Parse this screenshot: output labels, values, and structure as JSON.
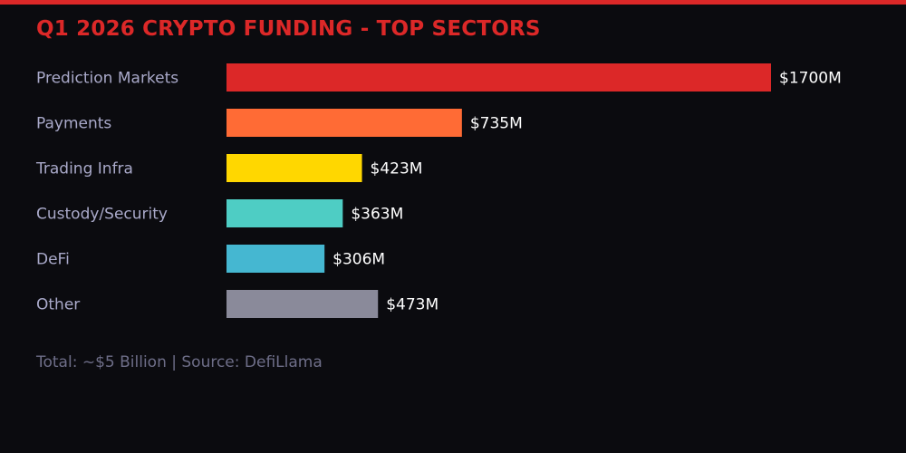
{
  "colors": {
    "accent": "#dc2828",
    "background": "#0b0b0f",
    "label": "#a9a9c9",
    "value_label": "#ffffff",
    "footer": "#6e6e88"
  },
  "chart_data": {
    "type": "bar",
    "orientation": "horizontal",
    "title": "Q1 2026 CRYPTO FUNDING - TOP SECTORS",
    "categories": [
      "Prediction Markets",
      "Payments",
      "Trading Infra",
      "Custody/Security",
      "DeFi",
      "Other"
    ],
    "values": [
      1700,
      735,
      423,
      363,
      306,
      473
    ],
    "value_labels": [
      "$1700M",
      "$735M",
      "$423M",
      "$363M",
      "$306M",
      "$473M"
    ],
    "bar_colors": [
      "#dc2828",
      "#ff6b35",
      "#ffd700",
      "#4ecdc4",
      "#45b7d1",
      "#8a8a9a"
    ],
    "xlim": [
      0,
      1700
    ],
    "grid": false,
    "footer": "Total: ~$5 Billion | Source: DefiLlama"
  }
}
